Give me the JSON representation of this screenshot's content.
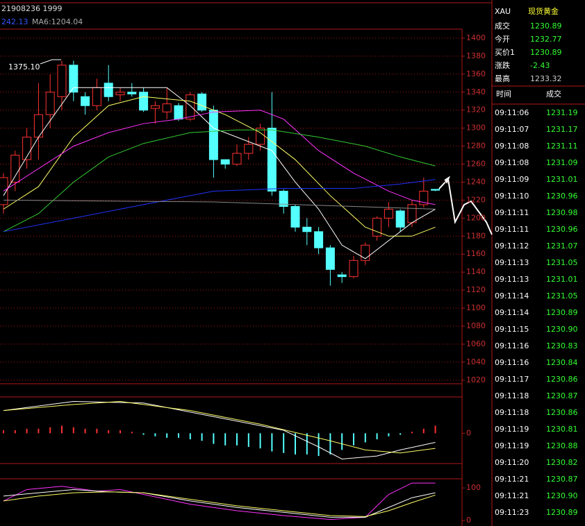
{
  "header": {
    "code": "21908236 1999",
    "ma_a": "242.13",
    "ma_b": "MA6:1204.04",
    "high_note": "1375.10"
  },
  "chart_data": [
    {
      "type": "candlestick",
      "ylim": [
        1016,
        1410
      ],
      "yticks": [
        1020,
        1040,
        1060,
        1080,
        1100,
        1120,
        1140,
        1160,
        1180,
        1200,
        1220,
        1240,
        1260,
        1280,
        1300,
        1320,
        1340,
        1360,
        1380,
        1400
      ],
      "grid": true,
      "up_color": "#ff3232",
      "down_color": "#54ffff",
      "ohlc": [
        [
          1215,
          1250,
          1205,
          1245
        ],
        [
          1240,
          1275,
          1230,
          1270
        ],
        [
          1265,
          1300,
          1255,
          1290
        ],
        [
          1290,
          1350,
          1265,
          1315
        ],
        [
          1315,
          1360,
          1300,
          1340
        ],
        [
          1335,
          1375,
          1320,
          1370
        ],
        [
          1370,
          1375,
          1330,
          1340
        ],
        [
          1335,
          1340,
          1315,
          1325
        ],
        [
          1325,
          1355,
          1320,
          1345
        ],
        [
          1350,
          1370,
          1330,
          1335
        ],
        [
          1337,
          1345,
          1330,
          1340
        ],
        [
          1340,
          1350,
          1335,
          1338
        ],
        [
          1340,
          1345,
          1318,
          1320
        ],
        [
          1322,
          1330,
          1305,
          1325
        ],
        [
          1318,
          1345,
          1310,
          1327
        ],
        [
          1325,
          1328,
          1308,
          1310
        ],
        [
          1310,
          1340,
          1308,
          1337
        ],
        [
          1338,
          1340,
          1318,
          1320
        ],
        [
          1320,
          1325,
          1245,
          1265
        ],
        [
          1265,
          1265,
          1255,
          1260
        ],
        [
          1260,
          1282,
          1258,
          1272
        ],
        [
          1272,
          1290,
          1265,
          1282
        ],
        [
          1282,
          1305,
          1275,
          1300
        ],
        [
          1300,
          1340,
          1225,
          1230
        ],
        [
          1230,
          1232,
          1205,
          1213
        ],
        [
          1213,
          1215,
          1185,
          1190
        ],
        [
          1190,
          1200,
          1170,
          1185
        ],
        [
          1185,
          1190,
          1160,
          1167
        ],
        [
          1167,
          1170,
          1125,
          1143
        ],
        [
          1137,
          1140,
          1128,
          1135
        ],
        [
          1135,
          1158,
          1133,
          1153
        ],
        [
          1153,
          1173,
          1148,
          1170
        ],
        [
          1180,
          1202,
          1175,
          1200
        ],
        [
          1200,
          1218,
          1190,
          1210
        ],
        [
          1208,
          1210,
          1185,
          1190
        ],
        [
          1195,
          1220,
          1190,
          1215
        ],
        [
          1215,
          1245,
          1212,
          1230
        ],
        [
          1232,
          1232,
          1230,
          1231
        ]
      ],
      "lines": [
        {
          "color": "#ffffff",
          "x": [
            0,
            3,
            6,
            9,
            12,
            14,
            16,
            18,
            21,
            23,
            25,
            27,
            29,
            31,
            33,
            35,
            37
          ],
          "values": [
            1225,
            1290,
            1345,
            1345,
            1345,
            1345,
            1325,
            1300,
            1285,
            1275,
            1240,
            1210,
            1170,
            1155,
            1175,
            1195,
            1210
          ]
        },
        {
          "color": "#ffff66",
          "x": [
            0,
            3,
            6,
            9,
            12,
            16,
            19,
            22,
            25,
            28,
            31,
            33,
            35,
            37
          ],
          "values": [
            1210,
            1235,
            1290,
            1325,
            1335,
            1330,
            1315,
            1295,
            1265,
            1225,
            1190,
            1180,
            1180,
            1190
          ]
        },
        {
          "color": "#ff33ff",
          "x": [
            0,
            3,
            6,
            9,
            12,
            15,
            18,
            22,
            24,
            27,
            30,
            33,
            35,
            37
          ],
          "values": [
            1230,
            1255,
            1280,
            1295,
            1305,
            1310,
            1318,
            1320,
            1310,
            1275,
            1250,
            1230,
            1220,
            1215
          ]
        },
        {
          "color": "#33cc33",
          "x": [
            0,
            3,
            6,
            9,
            12,
            16,
            20,
            23,
            27,
            31,
            34,
            37
          ],
          "values": [
            1185,
            1205,
            1240,
            1268,
            1283,
            1295,
            1298,
            1298,
            1290,
            1280,
            1268,
            1258
          ]
        },
        {
          "color": "#2233ff",
          "x": [
            0,
            6,
            12,
            18,
            24,
            30,
            34,
            37
          ],
          "values": [
            1185,
            1200,
            1215,
            1230,
            1233,
            1233,
            1238,
            1243
          ]
        },
        {
          "color": "#888888",
          "x": [
            0,
            18,
            30,
            37
          ],
          "values": [
            1220,
            1218,
            1213,
            1210
          ]
        }
      ]
    },
    {
      "type": "macd",
      "ylim": [
        -20,
        24
      ],
      "yticks": [
        0
      ],
      "up_color": "#ff3232",
      "down_color": "#54ffff",
      "values": [
        2,
        2,
        3,
        3,
        4,
        5,
        4,
        3,
        3,
        2,
        2,
        1,
        -1,
        -2,
        -3,
        -3,
        -4,
        -5,
        -7,
        -8,
        -8,
        -9,
        -10,
        -12,
        -13,
        -14,
        -14,
        -15,
        -14,
        -11,
        -8,
        -6,
        -4,
        -2,
        -1,
        1,
        3,
        5
      ],
      "lines": [
        {
          "color": "#ffffff",
          "x": [
            0,
            6,
            12,
            18,
            24,
            27,
            29,
            32,
            34,
            37
          ],
          "values": [
            15,
            21,
            20,
            11,
            2,
            -9,
            -17,
            -15,
            -11,
            -6
          ]
        },
        {
          "color": "#ffff66",
          "x": [
            0,
            6,
            10,
            16,
            22,
            28,
            31,
            34,
            37
          ],
          "values": [
            15,
            19,
            21,
            15,
            6,
            -5,
            -11,
            -13,
            -10
          ]
        }
      ]
    },
    {
      "type": "kdj",
      "ylim": [
        -17,
        128
      ],
      "yticks": [
        0,
        100
      ],
      "lines": [
        {
          "color": "#ff33ff",
          "x": [
            0,
            2,
            5,
            8,
            10,
            12,
            16,
            20,
            24,
            28,
            31,
            33,
            35,
            37
          ],
          "values": [
            60,
            95,
            105,
            90,
            95,
            80,
            50,
            30,
            15,
            3,
            10,
            80,
            115,
            115
          ]
        },
        {
          "color": "#ffffff",
          "x": [
            0,
            3,
            6,
            9,
            12,
            16,
            20,
            24,
            28,
            31,
            33,
            35,
            37
          ],
          "values": [
            75,
            85,
            95,
            88,
            85,
            60,
            40,
            25,
            10,
            10,
            40,
            70,
            85
          ]
        },
        {
          "color": "#ffff66",
          "x": [
            0,
            3,
            6,
            9,
            12,
            16,
            20,
            24,
            28,
            31,
            33,
            35,
            37
          ],
          "values": [
            60,
            75,
            85,
            88,
            85,
            65,
            45,
            30,
            15,
            12,
            30,
            55,
            78
          ]
        }
      ]
    }
  ],
  "quote_panel": {
    "symbol": "XAU",
    "name": "现货黄金",
    "fields": [
      [
        "成交",
        "1230.89"
      ],
      [
        "今开",
        "1232.77"
      ],
      [
        "买价1",
        "1230.89"
      ],
      [
        "涨跌",
        "-2.43"
      ],
      [
        "最高",
        "1233.32"
      ]
    ],
    "columns": [
      "时间",
      "成交"
    ],
    "ticks": [
      [
        "09:11:06",
        "1231.19"
      ],
      [
        "09:11:07",
        "1231.17"
      ],
      [
        "09:11:08",
        "1231.11"
      ],
      [
        "09:11:08",
        "1231.09"
      ],
      [
        "09:11:09",
        "1231.01"
      ],
      [
        "09:11:10",
        "1230.96"
      ],
      [
        "09:11:11",
        "1230.98"
      ],
      [
        "09:11:11",
        "1230.96"
      ],
      [
        "09:11:12",
        "1231.07"
      ],
      [
        "09:11:13",
        "1231.05"
      ],
      [
        "09:11:13",
        "1231.01"
      ],
      [
        "09:11:14",
        "1231.05"
      ],
      [
        "09:11:14",
        "1230.89"
      ],
      [
        "09:11:15",
        "1230.90"
      ],
      [
        "09:11:16",
        "1230.83"
      ],
      [
        "09:11:16",
        "1230.84"
      ],
      [
        "09:11:17",
        "1230.86"
      ],
      [
        "09:11:18",
        "1230.87"
      ],
      [
        "09:11:18",
        "1230.86"
      ],
      [
        "09:11:19",
        "1230.81"
      ],
      [
        "09:11:19",
        "1230.88"
      ],
      [
        "09:11:20",
        "1230.82"
      ],
      [
        "09:11:21",
        "1230.87"
      ],
      [
        "09:11:21",
        "1230.90"
      ],
      [
        "09:11:23",
        "1230.89"
      ]
    ]
  }
}
